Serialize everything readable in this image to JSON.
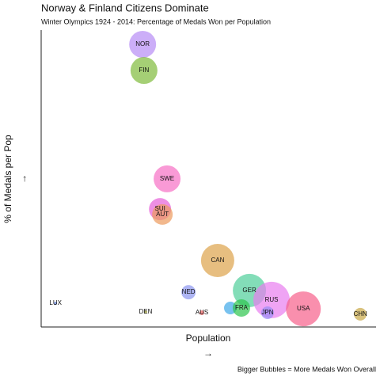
{
  "chart_data": {
    "type": "bubble",
    "title": "Norway & Finland Citizens Dominate",
    "subtitle": "Winter Olympics 1924 - 2014: Percentage of Medals Won per Population",
    "x_label": "Population",
    "x_arrow": "→",
    "y_label": "% of Medals per Pop",
    "y_arrow": "→",
    "caption": "Bigger Bubbles = More Medals Won Overall",
    "xlim": [
      0,
      100
    ],
    "ylim": [
      0,
      100
    ],
    "labels": [
      "NOR",
      "FIN",
      "SWE",
      "SUI",
      "AUT",
      "CAN",
      "NED",
      "GER",
      "RUS",
      "USA",
      null,
      "FRA",
      "JPN",
      "CHN",
      "LUX",
      "DEN",
      "AUS"
    ],
    "x": [
      30.3,
      30.7,
      37.6,
      35.5,
      36.2,
      52.7,
      44.0,
      62.2,
      68.8,
      78.3,
      56.5,
      59.8,
      67.6,
      95.3,
      4.3,
      31.2,
      48.0
    ],
    "y": [
      95.2,
      86.4,
      49.9,
      39.7,
      37.9,
      22.4,
      11.7,
      12.3,
      9.1,
      6.1,
      6.4,
      6.4,
      4.8,
      4.3,
      8.0,
      5.1,
      4.8
    ],
    "sizes": [
      17,
      17,
      17,
      14,
      13,
      21,
      9,
      21,
      23,
      22,
      8,
      11,
      8,
      8,
      2,
      2,
      3
    ],
    "colors": [
      "#b68cf5",
      "#7fba3a",
      "#f76fc5",
      "#e75fd9",
      "#ec9a5c",
      "#dda24a",
      "#8c96f0",
      "#4fcf9a",
      "#e87ef0",
      "#f75f8a",
      "#3ea8e8",
      "#2ec44d",
      "#9b8cf5",
      "#c9a846",
      "#5b7bd6",
      "#a5a53a",
      "#f06060"
    ]
  }
}
